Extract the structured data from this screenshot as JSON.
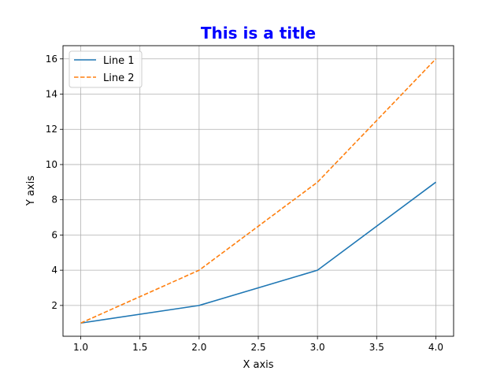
{
  "chart_data": {
    "type": "line",
    "title": "This is a title",
    "title_color": "#0000ff",
    "xlabel": "X axis",
    "ylabel": "Y axis",
    "x": [
      1,
      2,
      3,
      4
    ],
    "series": [
      {
        "name": "Line 1",
        "values": [
          1,
          2,
          4,
          9
        ],
        "color": "#1f77b4",
        "style": "solid"
      },
      {
        "name": "Line 2",
        "values": [
          1,
          4,
          9,
          16
        ],
        "color": "#ff7f0e",
        "style": "dashed"
      }
    ],
    "xlim": [
      0.85,
      4.15
    ],
    "ylim": [
      0.25,
      16.75
    ],
    "xticks": [
      1.0,
      1.5,
      2.0,
      2.5,
      3.0,
      3.5,
      4.0
    ],
    "xtick_labels": [
      "1.0",
      "1.5",
      "2.0",
      "2.5",
      "3.0",
      "3.5",
      "4.0"
    ],
    "yticks": [
      2,
      4,
      6,
      8,
      10,
      12,
      14,
      16
    ],
    "ytick_labels": [
      "2",
      "4",
      "6",
      "8",
      "10",
      "12",
      "14",
      "16"
    ],
    "grid": true,
    "legend_position": "top-left"
  }
}
